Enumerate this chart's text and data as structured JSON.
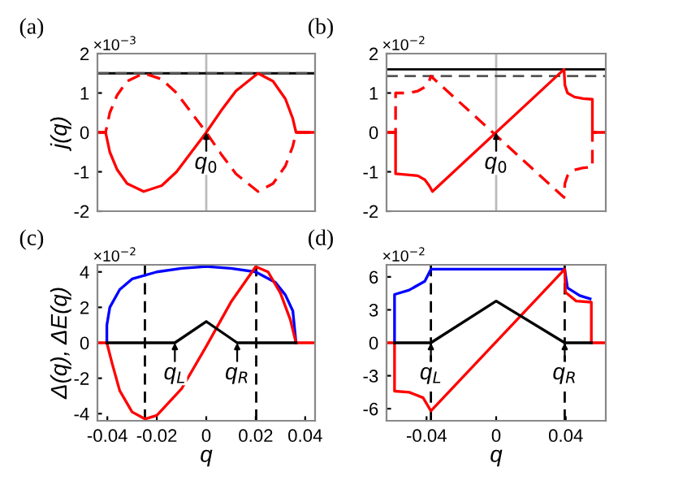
{
  "chart_data": [
    {
      "type": "line",
      "title": "(a)",
      "ylabel": "j(q)",
      "xlim": [
        -0.044,
        0.044
      ],
      "ylim": [
        -2,
        2
      ],
      "yticks": [
        -2,
        -1,
        0,
        1,
        2
      ],
      "tick_labels": "y",
      "annotations": [
        "×10$^{−3}$",
        {
          "text": "q$_{0}$",
          "x": 0,
          "y": 0
        }
      ],
      "ref_lines": [
        {
          "axis": "x",
          "value": 0,
          "color": "#bbbbbb"
        },
        {
          "axis": "y",
          "value": 1.5,
          "color": "#000000"
        },
        {
          "axis": "y",
          "value": 1.5,
          "color": "#555555",
          "line_style": "dashed"
        }
      ],
      "series": [
        {
          "color": "#ff0000",
          "line_style": "solid",
          "x": [
            -0.044,
            -0.0407,
            -0.039,
            -0.036,
            -0.032,
            -0.0253,
            -0.018,
            -0.012,
            -0.006,
            0,
            0.006,
            0.012,
            0.0209,
            0.027,
            0.032,
            0.035,
            0.0363,
            0.044
          ],
          "values": [
            0,
            0,
            -0.5,
            -0.95,
            -1.3,
            -1.5,
            -1.35,
            -1.0,
            -0.5,
            0,
            0.55,
            1.05,
            1.5,
            1.3,
            0.85,
            0.35,
            0,
            0
          ]
        },
        {
          "color": "#ff0000",
          "line_style": "dashed",
          "x": [
            -0.044,
            -0.0407,
            -0.039,
            -0.036,
            -0.032,
            -0.0253,
            -0.018,
            -0.012,
            -0.006,
            0,
            0.006,
            0.012,
            0.0209,
            0.027,
            0.032,
            0.035,
            0.0363,
            0.044
          ],
          "values": [
            0,
            0,
            0.5,
            0.95,
            1.3,
            1.5,
            1.35,
            1.0,
            0.5,
            0,
            -0.55,
            -1.05,
            -1.5,
            -1.3,
            -0.85,
            -0.35,
            0,
            0
          ]
        }
      ]
    },
    {
      "type": "line",
      "title": "(b)",
      "xlim": [
        -0.063,
        0.063
      ],
      "ylim": [
        -2,
        2
      ],
      "yticks": [
        -2,
        -1,
        0,
        1,
        2
      ],
      "tick_labels": "y",
      "annotations": [
        "×10$^{−2}$",
        {
          "text": "q$_{0}$",
          "x": 0,
          "y": 0
        }
      ],
      "ref_lines": [
        {
          "axis": "x",
          "value": 0,
          "color": "#bbbbbb"
        },
        {
          "axis": "y",
          "value": 1.6,
          "color": "#000000"
        },
        {
          "axis": "y",
          "value": 1.43,
          "color": "#555555",
          "line_style": "dashed"
        }
      ],
      "series": [
        {
          "color": "#ff0000",
          "line_style": "solid",
          "x": [
            -0.063,
            -0.0578,
            -0.0578,
            -0.05,
            -0.045,
            -0.041,
            -0.0385,
            -0.0366,
            0.039,
            0.0395,
            0.041,
            0.045,
            0.05,
            0.0553,
            0.0553,
            0.063
          ],
          "values": [
            0,
            0,
            -1.05,
            -1.08,
            -1.1,
            -1.2,
            -1.35,
            -1.5,
            1.6,
            1.2,
            1.0,
            0.9,
            0.86,
            0.84,
            0,
            0
          ]
        },
        {
          "color": "#ff0000",
          "line_style": "dashed",
          "x": [
            -0.063,
            -0.0578,
            -0.0578,
            -0.05,
            -0.045,
            -0.041,
            -0.0385,
            -0.0375,
            0.039,
            0.0395,
            0.041,
            0.045,
            0.05,
            0.0553,
            0.0553,
            0.063
          ],
          "values": [
            0,
            0,
            1.0,
            1.0,
            1.05,
            1.15,
            1.3,
            1.43,
            -1.65,
            -1.3,
            -1.1,
            -0.95,
            -0.9,
            -0.88,
            0,
            0
          ]
        }
      ]
    },
    {
      "type": "line",
      "title": "(c)",
      "xlabel": "q",
      "ylabel": "Δ(q), ΔE(q)",
      "xlim": [
        -0.044,
        0.044
      ],
      "ylim": [
        -4.4,
        4.4
      ],
      "xticks": [
        -0.04,
        -0.02,
        0,
        0.02,
        0.04
      ],
      "yticks": [
        -4,
        -2,
        0,
        2,
        4
      ],
      "annotations": [
        "×10$^{−2}$",
        {
          "text": "q$_{L}$",
          "x": -0.0127,
          "y": 0
        },
        {
          "text": "q$_{R}$",
          "x": 0.0125,
          "y": 0
        }
      ],
      "ref_lines": [
        {
          "axis": "x",
          "value": -0.0248,
          "color": "#000000",
          "line_style": "dashed"
        },
        {
          "axis": "x",
          "value": 0.0202,
          "color": "#000000",
          "line_style": "dashed"
        }
      ],
      "series": [
        {
          "color": "#0000ff",
          "line_style": "solid",
          "x": [
            -0.0402,
            -0.0402,
            -0.039,
            -0.035,
            -0.03,
            -0.02,
            -0.01,
            0,
            0.01,
            0.02,
            0.028,
            0.032,
            0.035,
            0.0363
          ],
          "values": [
            0,
            1.0,
            2.0,
            3.0,
            3.6,
            4.0,
            4.2,
            4.3,
            4.2,
            4.0,
            3.4,
            2.7,
            1.8,
            0
          ]
        },
        {
          "color": "#ff0000",
          "line_style": "solid",
          "x": [
            -0.044,
            -0.0402,
            -0.038,
            -0.035,
            -0.03,
            -0.0248,
            -0.02,
            -0.01,
            0,
            0.01,
            0.02,
            0.025,
            0.03,
            0.034,
            0.0363,
            0.044
          ],
          "values": [
            0,
            0,
            -1.2,
            -2.7,
            -3.9,
            -4.3,
            -4.1,
            -2.6,
            -0.2,
            2.3,
            4.3,
            4.0,
            2.8,
            1.3,
            0,
            0
          ]
        },
        {
          "color": "#000000",
          "line_style": "solid",
          "x": [
            -0.0402,
            -0.0127,
            0,
            0.0125,
            0.0363
          ],
          "values": [
            0,
            0,
            1.2,
            0,
            0
          ]
        }
      ]
    },
    {
      "type": "line",
      "title": "(d)",
      "xlabel": "q",
      "xlim": [
        -0.063,
        0.063
      ],
      "ylim": [
        -7.1,
        7.1
      ],
      "xticks": [
        -0.04,
        0,
        0.04
      ],
      "yticks": [
        -6,
        -3,
        0,
        3,
        6
      ],
      "annotations": [
        "×10$^{−2}$",
        {
          "text": "q$_{L}$",
          "x": -0.0375,
          "y": 0
        },
        {
          "text": "q$_{R}$",
          "x": 0.0394,
          "y": 0
        }
      ],
      "ref_lines": [
        {
          "axis": "x",
          "value": -0.0375,
          "color": "#000000",
          "line_style": "dashed"
        },
        {
          "axis": "x",
          "value": 0.0394,
          "color": "#000000",
          "line_style": "dashed"
        }
      ],
      "series": [
        {
          "color": "#0000ff",
          "line_style": "solid",
          "x": [
            -0.0584,
            -0.0584,
            -0.05,
            -0.041,
            -0.0375,
            0.0394,
            0.041,
            0.048,
            0.054
          ],
          "values": [
            0,
            4.4,
            4.8,
            5.6,
            6.7,
            6.7,
            5.0,
            4.3,
            4.0
          ]
        },
        {
          "color": "#ff0000",
          "line_style": "solid",
          "x": [
            -0.063,
            -0.0584,
            -0.0584,
            -0.05,
            -0.042,
            -0.0375,
            0.0394,
            0.0398,
            0.046,
            0.0547,
            0.0547,
            0.063
          ],
          "values": [
            0,
            0,
            -4.4,
            -4.5,
            -5.0,
            -6.2,
            6.7,
            4.6,
            3.8,
            3.7,
            0,
            0
          ]
        },
        {
          "color": "#000000",
          "line_style": "solid",
          "x": [
            -0.0584,
            -0.0375,
            0,
            0.0394,
            0.0547
          ],
          "values": [
            0,
            0,
            3.8,
            0,
            0
          ]
        }
      ]
    }
  ]
}
